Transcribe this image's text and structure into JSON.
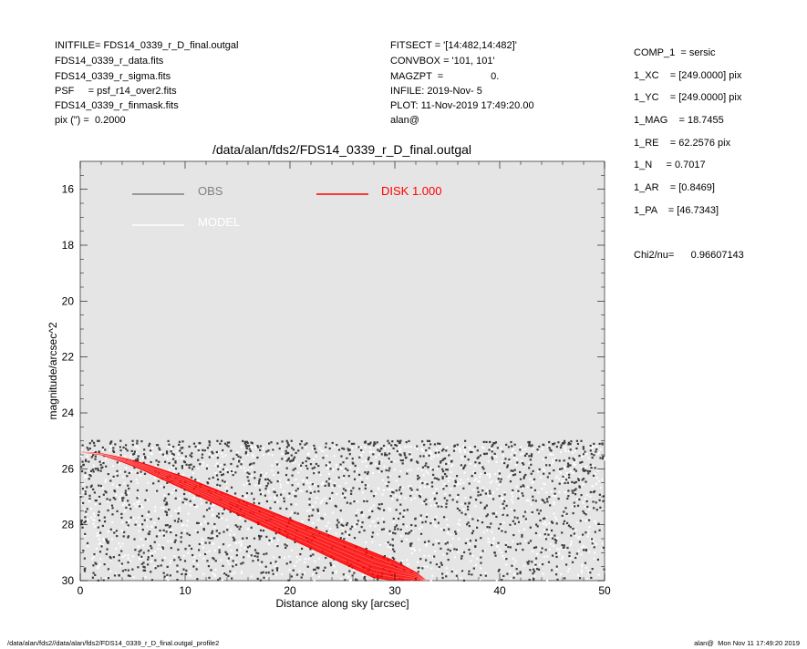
{
  "header_left": [
    "INITFILE= FDS14_0339_r_D_final.outgal",
    "FDS14_0339_r_data.fits",
    "FDS14_0339_r_sigma.fits",
    "PSF     = psf_r14_over2.fits",
    "FDS14_0339_r_finmask.fits",
    "pix (\") =  0.2000"
  ],
  "header_mid": [
    "FITSECT = '[14:482,14:482]'",
    "CONVBOX = '101, 101'",
    "MAGZPT  =                 0.",
    "INFILE: 2019-Nov- 5",
    "PLOT: 11-Nov-2019 17:49:20.00",
    "alan@"
  ],
  "params": [
    "COMP_1  = sersic",
    "1_XC    = [249.0000] pix",
    "1_YC    = [249.0000] pix",
    "1_MAG    = 18.7455",
    "1_RE    = 62.2576 pix",
    "1_N     = 0.7017",
    "1_AR    = [0.8469]",
    "1_PA    = [46.7343]"
  ],
  "chi2": "Chi2/nu=      0.96607143",
  "footer_left": "/data/alan/fds2//data/alan/fds2/FDS14_0339_r_D_final.outgal_profile2",
  "footer_right": "alan@  Mon Nov 11 17:49:20 2019",
  "colors": {
    "plot_bg": "#e5e5e5",
    "obs": "#808080",
    "model": "#ffffff",
    "disk": "#ff0000",
    "obs_points": "#3c3c3c"
  },
  "chart_data": {
    "type": "scatter",
    "title": "/data/alan/fds2/FDS14_0339_r_D_final.outgal",
    "xlabel": "Distance along sky [arcsec]",
    "ylabel": "magnitude/arcsec^2",
    "xlim": [
      0,
      50
    ],
    "ylim": [
      30,
      15
    ],
    "y_inverted": true,
    "xticks": [
      0,
      10,
      20,
      30,
      40,
      50
    ],
    "yticks": [
      16,
      18,
      20,
      22,
      24,
      26,
      28,
      30
    ],
    "legend": [
      {
        "name": "OBS",
        "color": "#808080"
      },
      {
        "name": "MODEL",
        "color": "#ffffff"
      },
      {
        "name": "DISK  1.000",
        "color": "#ff0000"
      }
    ],
    "legend_position": "top-left",
    "grid": false,
    "series": [
      {
        "name": "OBS",
        "kind": "scatter",
        "x_range": [
          0,
          50
        ],
        "y_range": [
          25.0,
          30.0
        ],
        "density": "dense"
      },
      {
        "name": "MODEL",
        "kind": "scatter",
        "x_range": [
          0,
          50
        ],
        "y_range": [
          25.2,
          30.0
        ],
        "density": "dense"
      },
      {
        "name": "DISK  1.000",
        "kind": "band",
        "x": [
          0,
          2,
          4,
          6,
          8,
          10,
          12,
          14,
          16,
          18,
          20,
          22,
          24,
          26,
          28,
          30,
          32,
          33
        ],
        "y_hi": [
          25.4,
          25.45,
          25.6,
          25.8,
          26.05,
          26.3,
          26.6,
          26.9,
          27.2,
          27.5,
          27.8,
          28.1,
          28.4,
          28.7,
          29.0,
          29.3,
          29.7,
          30.0
        ],
        "y_lo": [
          25.4,
          25.5,
          25.75,
          26.05,
          26.4,
          26.75,
          27.1,
          27.45,
          27.8,
          28.15,
          28.5,
          28.85,
          29.2,
          29.55,
          29.9,
          30.0,
          30.0,
          30.0
        ]
      }
    ]
  }
}
